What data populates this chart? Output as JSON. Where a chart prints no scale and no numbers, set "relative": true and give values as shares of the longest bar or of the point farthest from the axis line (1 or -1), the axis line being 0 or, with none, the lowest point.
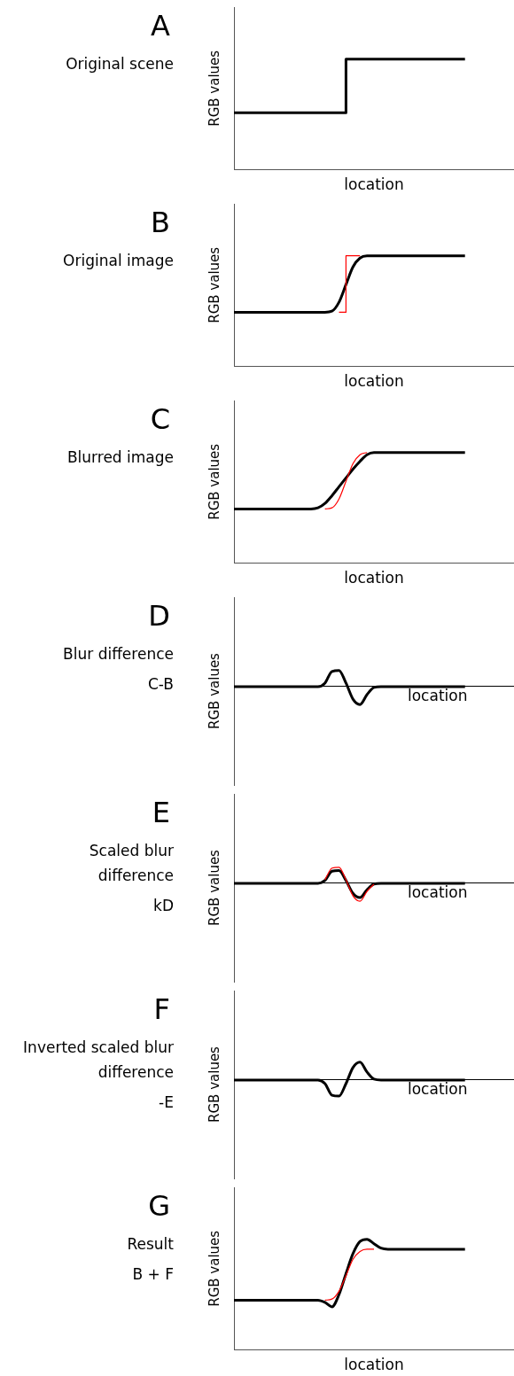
{
  "chart_data": [
    {
      "type": "step",
      "title": "A",
      "subtitle": "Original scene",
      "xlabel": "location",
      "ylabel": "RGB values",
      "relative": true,
      "categories": [
        null,
        null,
        null,
        null,
        null,
        null,
        null,
        null,
        null,
        null,
        null,
        null,
        null,
        null,
        null,
        null,
        null,
        null,
        null,
        null,
        null,
        null,
        null,
        null,
        null,
        null,
        null,
        null,
        null,
        null,
        null,
        null,
        null,
        null,
        null,
        null,
        null,
        null,
        null,
        null,
        null
      ],
      "series": [
        {
          "color": "#000000",
          "values": [
            0.515,
            0.515,
            0.515,
            0.515,
            0.515,
            0.515,
            0.515,
            0.515,
            0.515,
            0.515,
            0.515,
            0.515,
            0.515,
            0.515,
            0.515,
            0.515,
            0.515,
            1,
            1,
            1,
            1,
            1,
            1,
            1,
            1,
            1,
            1,
            1,
            1,
            1,
            1,
            1,
            1,
            1,
            null,
            null,
            null,
            null,
            null,
            null,
            null
          ]
        }
      ]
    },
    {
      "type": "line",
      "title": "B",
      "subtitle": "Original image",
      "xlabel": "location",
      "ylabel": "RGB values",
      "relative": true,
      "categories": [
        null,
        null,
        null,
        null,
        null,
        null,
        null,
        null,
        null,
        null,
        null,
        null,
        null,
        null,
        null,
        null,
        null,
        null,
        null,
        null,
        null,
        null,
        null,
        null,
        null,
        null,
        null,
        null,
        null,
        null,
        null,
        null,
        null,
        null,
        null,
        null,
        null,
        null,
        null,
        null,
        null
      ],
      "series": [
        {
          "color": "#000000",
          "values": [
            0.49,
            0.49,
            0.49,
            0.49,
            0.49,
            0.49,
            0.49,
            0.49,
            0.49,
            0.49,
            0.49,
            0.49,
            0.49,
            0.49,
            0.5,
            0.58,
            0.74,
            0.9,
            0.98,
            1,
            1,
            1,
            1,
            1,
            1,
            1,
            1,
            1,
            1,
            1,
            1,
            1,
            1,
            1,
            null,
            null,
            null,
            null,
            null,
            null,
            null
          ]
        },
        {
          "type": "step",
          "color": "#ff0000",
          "values": [
            null,
            null,
            null,
            null,
            null,
            null,
            null,
            null,
            null,
            null,
            null,
            null,
            null,
            null,
            null,
            0.49,
            0.49,
            1,
            1,
            null,
            null,
            null,
            null,
            null,
            null,
            null,
            null,
            null,
            null,
            null,
            null,
            null,
            null,
            null,
            null,
            null,
            null,
            null,
            null,
            null,
            null
          ]
        }
      ]
    },
    {
      "type": "line",
      "title": "C",
      "subtitle": "Blurred image",
      "xlabel": "location",
      "ylabel": "RGB values",
      "relative": true,
      "categories": [
        null,
        null,
        null,
        null,
        null,
        null,
        null,
        null,
        null,
        null,
        null,
        null,
        null,
        null,
        null,
        null,
        null,
        null,
        null,
        null,
        null,
        null,
        null,
        null,
        null,
        null,
        null,
        null,
        null,
        null,
        null,
        null,
        null,
        null,
        null,
        null,
        null,
        null,
        null,
        null,
        null
      ],
      "series": [
        {
          "color": "#000000",
          "values": [
            0.49,
            0.49,
            0.49,
            0.49,
            0.49,
            0.49,
            0.49,
            0.49,
            0.49,
            0.49,
            0.49,
            0.49,
            0.5,
            0.54,
            0.61,
            0.69,
            0.77,
            0.85,
            0.92,
            0.98,
            1,
            1,
            1,
            1,
            1,
            1,
            1,
            1,
            1,
            1,
            1,
            1,
            1,
            1,
            null,
            null,
            null,
            null,
            null,
            null,
            null
          ]
        },
        {
          "color": "#ff0000",
          "values": [
            null,
            null,
            null,
            null,
            null,
            null,
            null,
            null,
            null,
            null,
            null,
            null,
            null,
            0.49,
            0.5,
            0.58,
            0.74,
            0.9,
            0.98,
            1,
            null,
            null,
            null,
            null,
            null,
            null,
            null,
            null,
            null,
            null,
            null,
            null,
            null,
            null,
            null,
            null,
            null,
            null,
            null,
            null,
            null
          ]
        }
      ]
    },
    {
      "type": "line",
      "title": "D",
      "subtitle": "Blur difference",
      "annotations": [
        "C-B"
      ],
      "xlabel": "location",
      "ylabel": "RGB values",
      "relative": true,
      "categories": [
        null,
        null,
        null,
        null,
        null,
        null,
        null,
        null,
        null,
        null,
        null,
        null,
        null,
        null,
        null,
        null,
        null,
        null,
        null,
        null,
        null,
        null,
        null,
        null,
        null,
        null,
        null,
        null,
        null,
        null,
        null,
        null,
        null,
        null,
        null,
        null,
        null,
        null,
        null,
        null,
        null
      ],
      "series": [
        {
          "color": "#000000",
          "values": [
            0,
            0,
            0,
            0,
            0,
            0,
            0,
            0,
            0,
            0,
            0,
            0,
            0,
            0.2,
            0.85,
            0.9,
            0.2,
            -0.7,
            -1,
            -0.45,
            -0.05,
            0,
            0,
            0,
            0,
            0,
            0,
            0,
            0,
            0,
            0,
            0,
            0,
            0,
            null,
            null,
            null,
            null,
            null,
            null,
            null
          ]
        }
      ]
    },
    {
      "type": "line",
      "title": "E",
      "subtitle": "Scaled blur difference",
      "annotations": [
        "kD"
      ],
      "xlabel": "location",
      "ylabel": "RGB values",
      "relative": true,
      "categories": [
        null,
        null,
        null,
        null,
        null,
        null,
        null,
        null,
        null,
        null,
        null,
        null,
        null,
        null,
        null,
        null,
        null,
        null,
        null,
        null,
        null,
        null,
        null,
        null,
        null,
        null,
        null,
        null,
        null,
        null,
        null,
        null,
        null,
        null,
        null,
        null,
        null,
        null,
        null,
        null,
        null
      ],
      "series": [
        {
          "color": "#000000",
          "values": [
            0,
            0,
            0,
            0,
            0,
            0,
            0,
            0,
            0,
            0,
            0,
            0,
            0,
            0.16,
            0.68,
            0.72,
            0.16,
            -0.56,
            -0.8,
            -0.36,
            -0.04,
            0,
            0,
            0,
            0,
            0,
            0,
            0,
            0,
            0,
            0,
            0,
            0,
            0,
            null,
            null,
            null,
            null,
            null,
            null,
            null
          ]
        },
        {
          "color": "#ff0000",
          "values": [
            null,
            null,
            null,
            null,
            null,
            null,
            null,
            null,
            null,
            null,
            null,
            null,
            null,
            0.2,
            0.85,
            0.9,
            0.2,
            -0.7,
            -1,
            -0.45,
            -0.05,
            null,
            null,
            null,
            null,
            null,
            null,
            null,
            null,
            null,
            null,
            null,
            null,
            null,
            null,
            null,
            null,
            null,
            null,
            null,
            null
          ]
        }
      ]
    },
    {
      "type": "line",
      "title": "F",
      "subtitle": "Inverted scaled blur difference",
      "annotations": [
        "-E"
      ],
      "xlabel": "location",
      "ylabel": "RGB values",
      "relative": true,
      "categories": [
        null,
        null,
        null,
        null,
        null,
        null,
        null,
        null,
        null,
        null,
        null,
        null,
        null,
        null,
        null,
        null,
        null,
        null,
        null,
        null,
        null,
        null,
        null,
        null,
        null,
        null,
        null,
        null,
        null,
        null,
        null,
        null,
        null,
        null,
        null,
        null,
        null,
        null,
        null,
        null,
        null
      ],
      "series": [
        {
          "color": "#000000",
          "values": [
            0,
            0,
            0,
            0,
            0,
            0,
            0,
            0,
            0,
            0,
            0,
            0,
            0,
            -0.2,
            -0.85,
            -0.9,
            -0.2,
            0.7,
            1,
            0.45,
            0.05,
            0,
            0,
            0,
            0,
            0,
            0,
            0,
            0,
            0,
            0,
            0,
            0,
            0,
            null,
            null,
            null,
            null,
            null,
            null,
            null
          ]
        }
      ]
    },
    {
      "type": "line",
      "title": "G",
      "subtitle": "Result",
      "annotations": [
        "B + F"
      ],
      "xlabel": "location",
      "ylabel": "RGB values",
      "relative": true,
      "categories": [
        null,
        null,
        null,
        null,
        null,
        null,
        null,
        null,
        null,
        null,
        null,
        null,
        null,
        null,
        null,
        null,
        null,
        null,
        null,
        null,
        null,
        null,
        null,
        null,
        null,
        null,
        null,
        null,
        null,
        null,
        null,
        null,
        null,
        null,
        null,
        null,
        null,
        null,
        null,
        null,
        null
      ],
      "series": [
        {
          "color": "#000000",
          "values": [
            0.45,
            0.45,
            0.45,
            0.45,
            0.45,
            0.45,
            0.45,
            0.45,
            0.45,
            0.45,
            0.45,
            0.45,
            0.45,
            0.43,
            0.39,
            0.5,
            0.69,
            0.87,
            0.98,
            1,
            0.96,
            0.92,
            0.91,
            0.91,
            0.91,
            0.91,
            0.91,
            0.91,
            0.91,
            0.91,
            0.91,
            0.91,
            0.91,
            0.91,
            null,
            null,
            null,
            null,
            null,
            null,
            null
          ]
        },
        {
          "color": "#ff0000",
          "values": [
            null,
            null,
            null,
            null,
            null,
            null,
            null,
            null,
            null,
            null,
            null,
            null,
            null,
            0.45,
            0.46,
            0.53,
            0.67,
            0.82,
            0.89,
            0.91,
            0.91,
            null,
            null,
            null,
            null,
            null,
            null,
            null,
            null,
            null,
            null,
            null,
            null,
            null,
            null,
            null,
            null,
            null,
            null,
            null,
            null
          ]
        }
      ]
    }
  ]
}
